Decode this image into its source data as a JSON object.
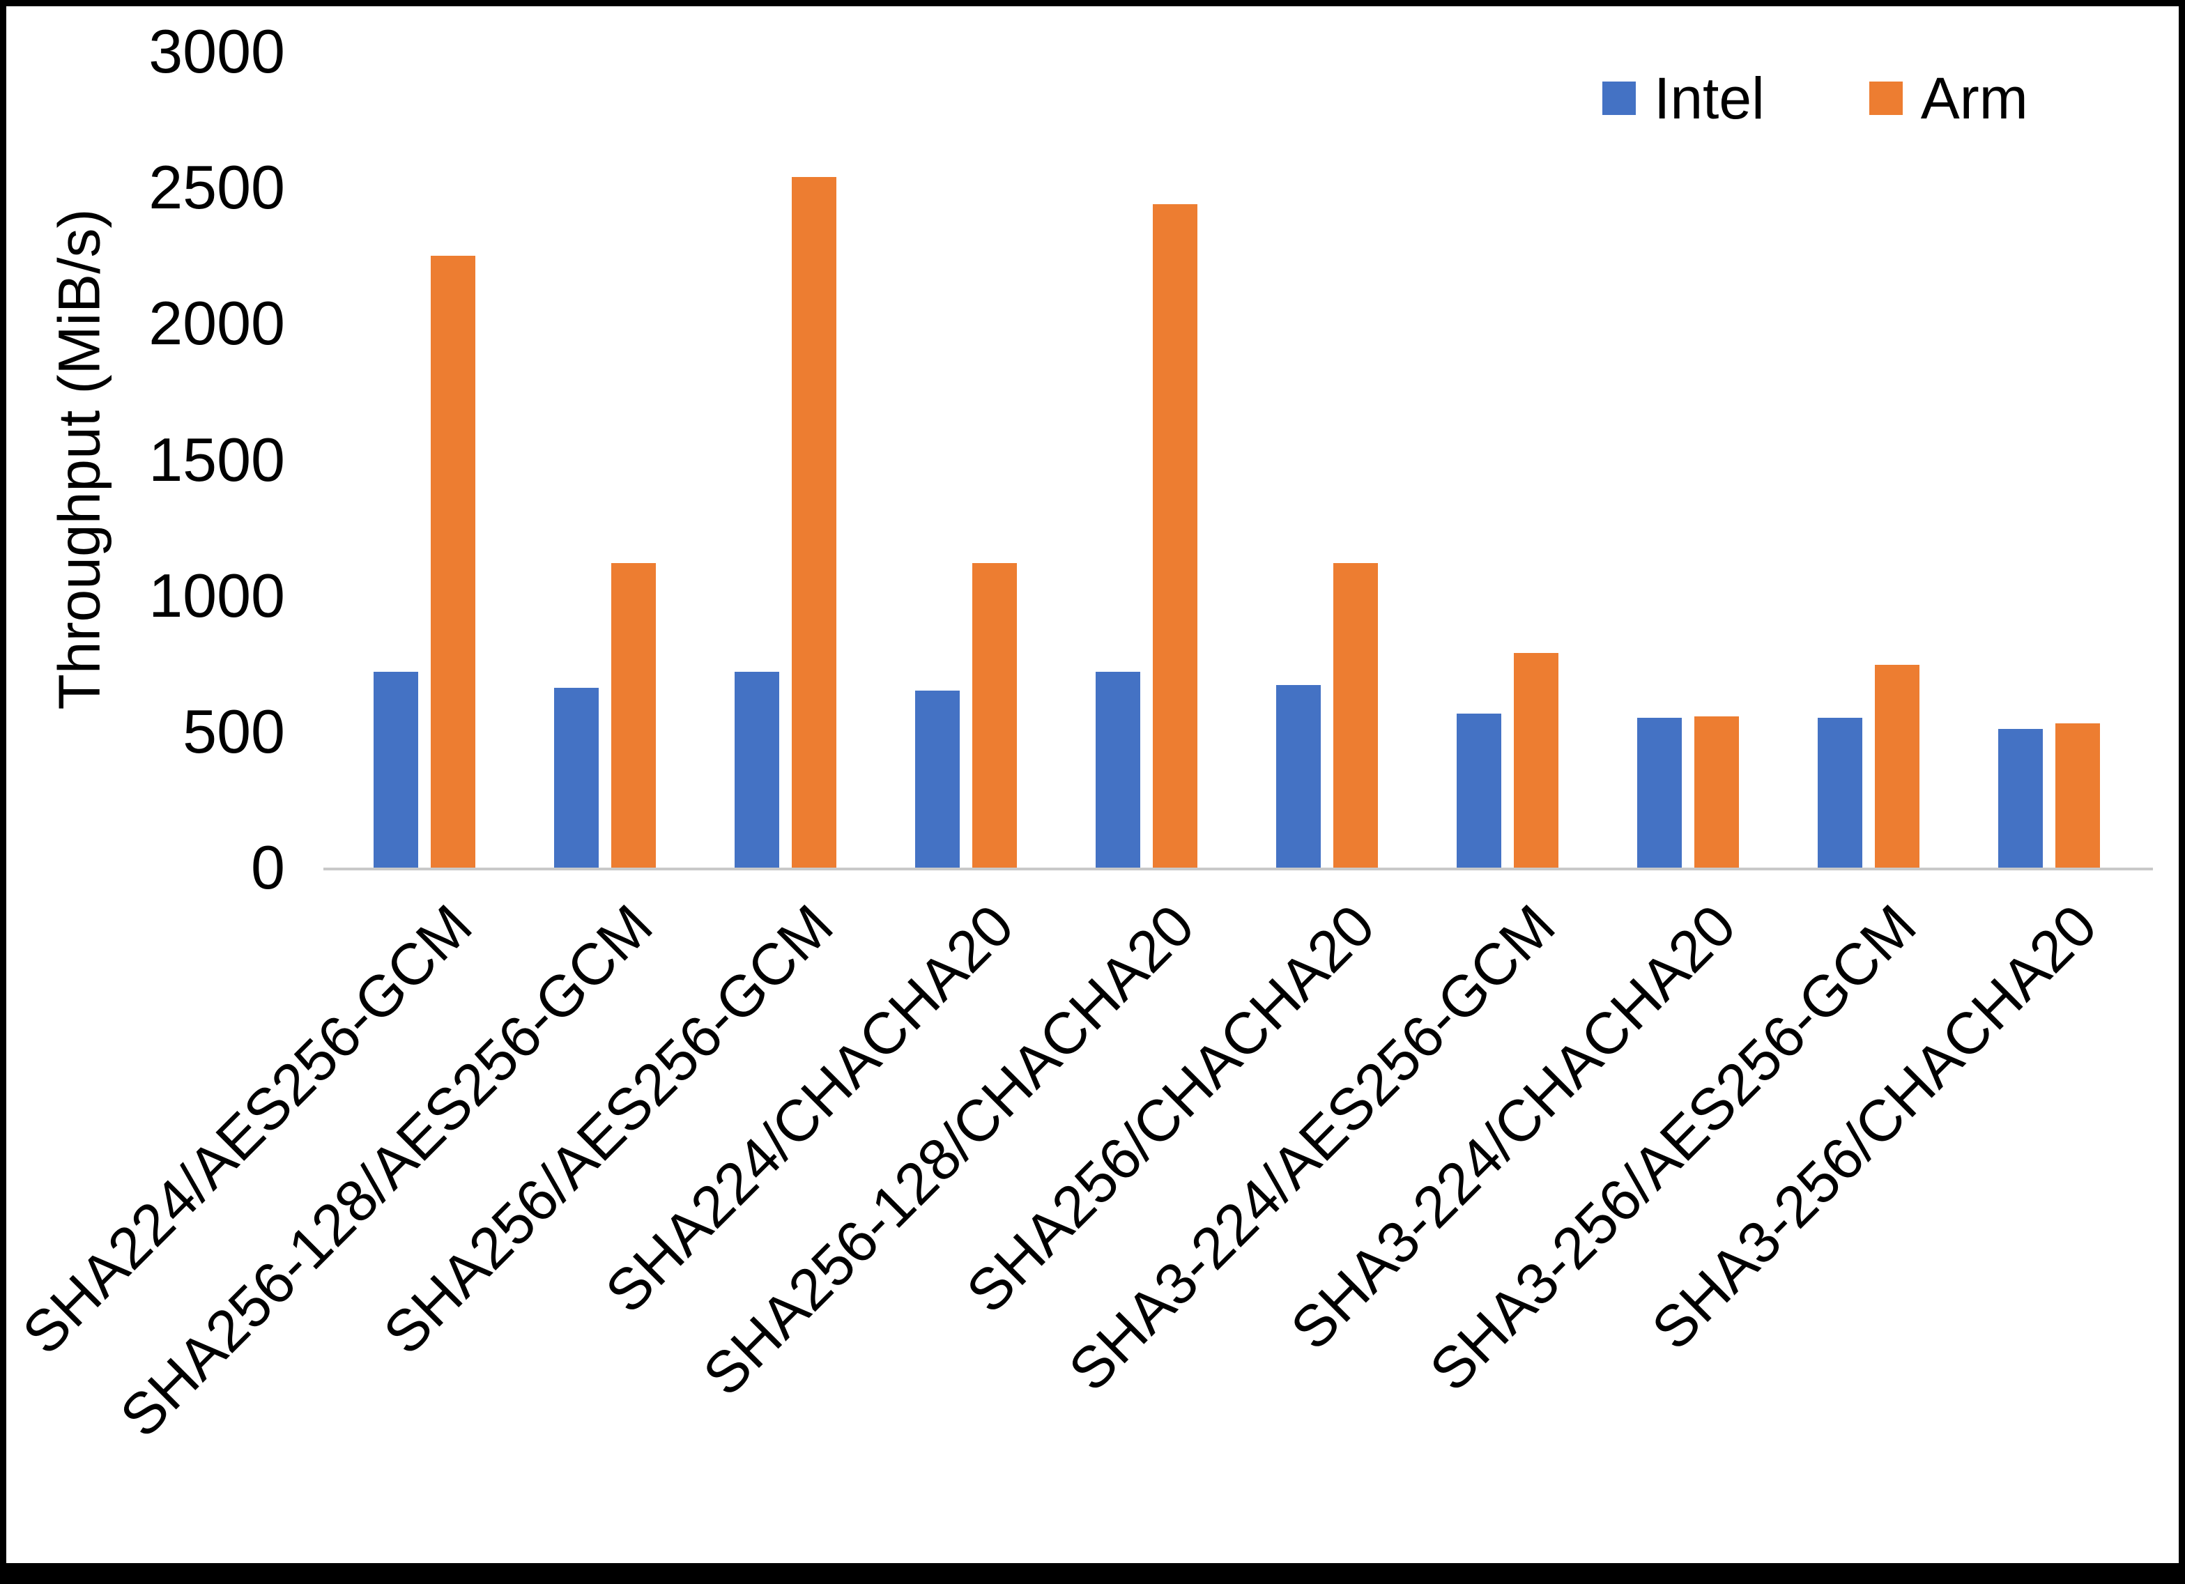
{
  "chart_data": {
    "type": "bar",
    "title": "",
    "xlabel": "",
    "ylabel": "Throughput (MiB/s)",
    "ylim": [
      0,
      3000
    ],
    "yticks": [
      0,
      500,
      1000,
      1500,
      2000,
      2500,
      3000
    ],
    "grid": false,
    "legend_position": "top-right",
    "categories": [
      "SHA224/AES256-GCM",
      "SHA256-128/AES256-GCM",
      "SHA256/AES256-GCM",
      "SHA224/CHACHA20",
      "SHA256-128/CHACHA20",
      "SHA256/CHACHA20",
      "SHA3-224/AES256-GCM",
      "SHA3-224/CHACHA20",
      "SHA3-256/AES256-GCM",
      "SHA3-256/CHACHA20"
    ],
    "series": [
      {
        "name": "Intel",
        "color": "#4472C4",
        "values": [
          720,
          660,
          720,
          650,
          720,
          670,
          565,
          550,
          550,
          510
        ]
      },
      {
        "name": "Arm",
        "color": "#ED7D31",
        "values": [
          2250,
          1120,
          2540,
          1120,
          2440,
          1120,
          790,
          555,
          745,
          530
        ]
      }
    ]
  }
}
